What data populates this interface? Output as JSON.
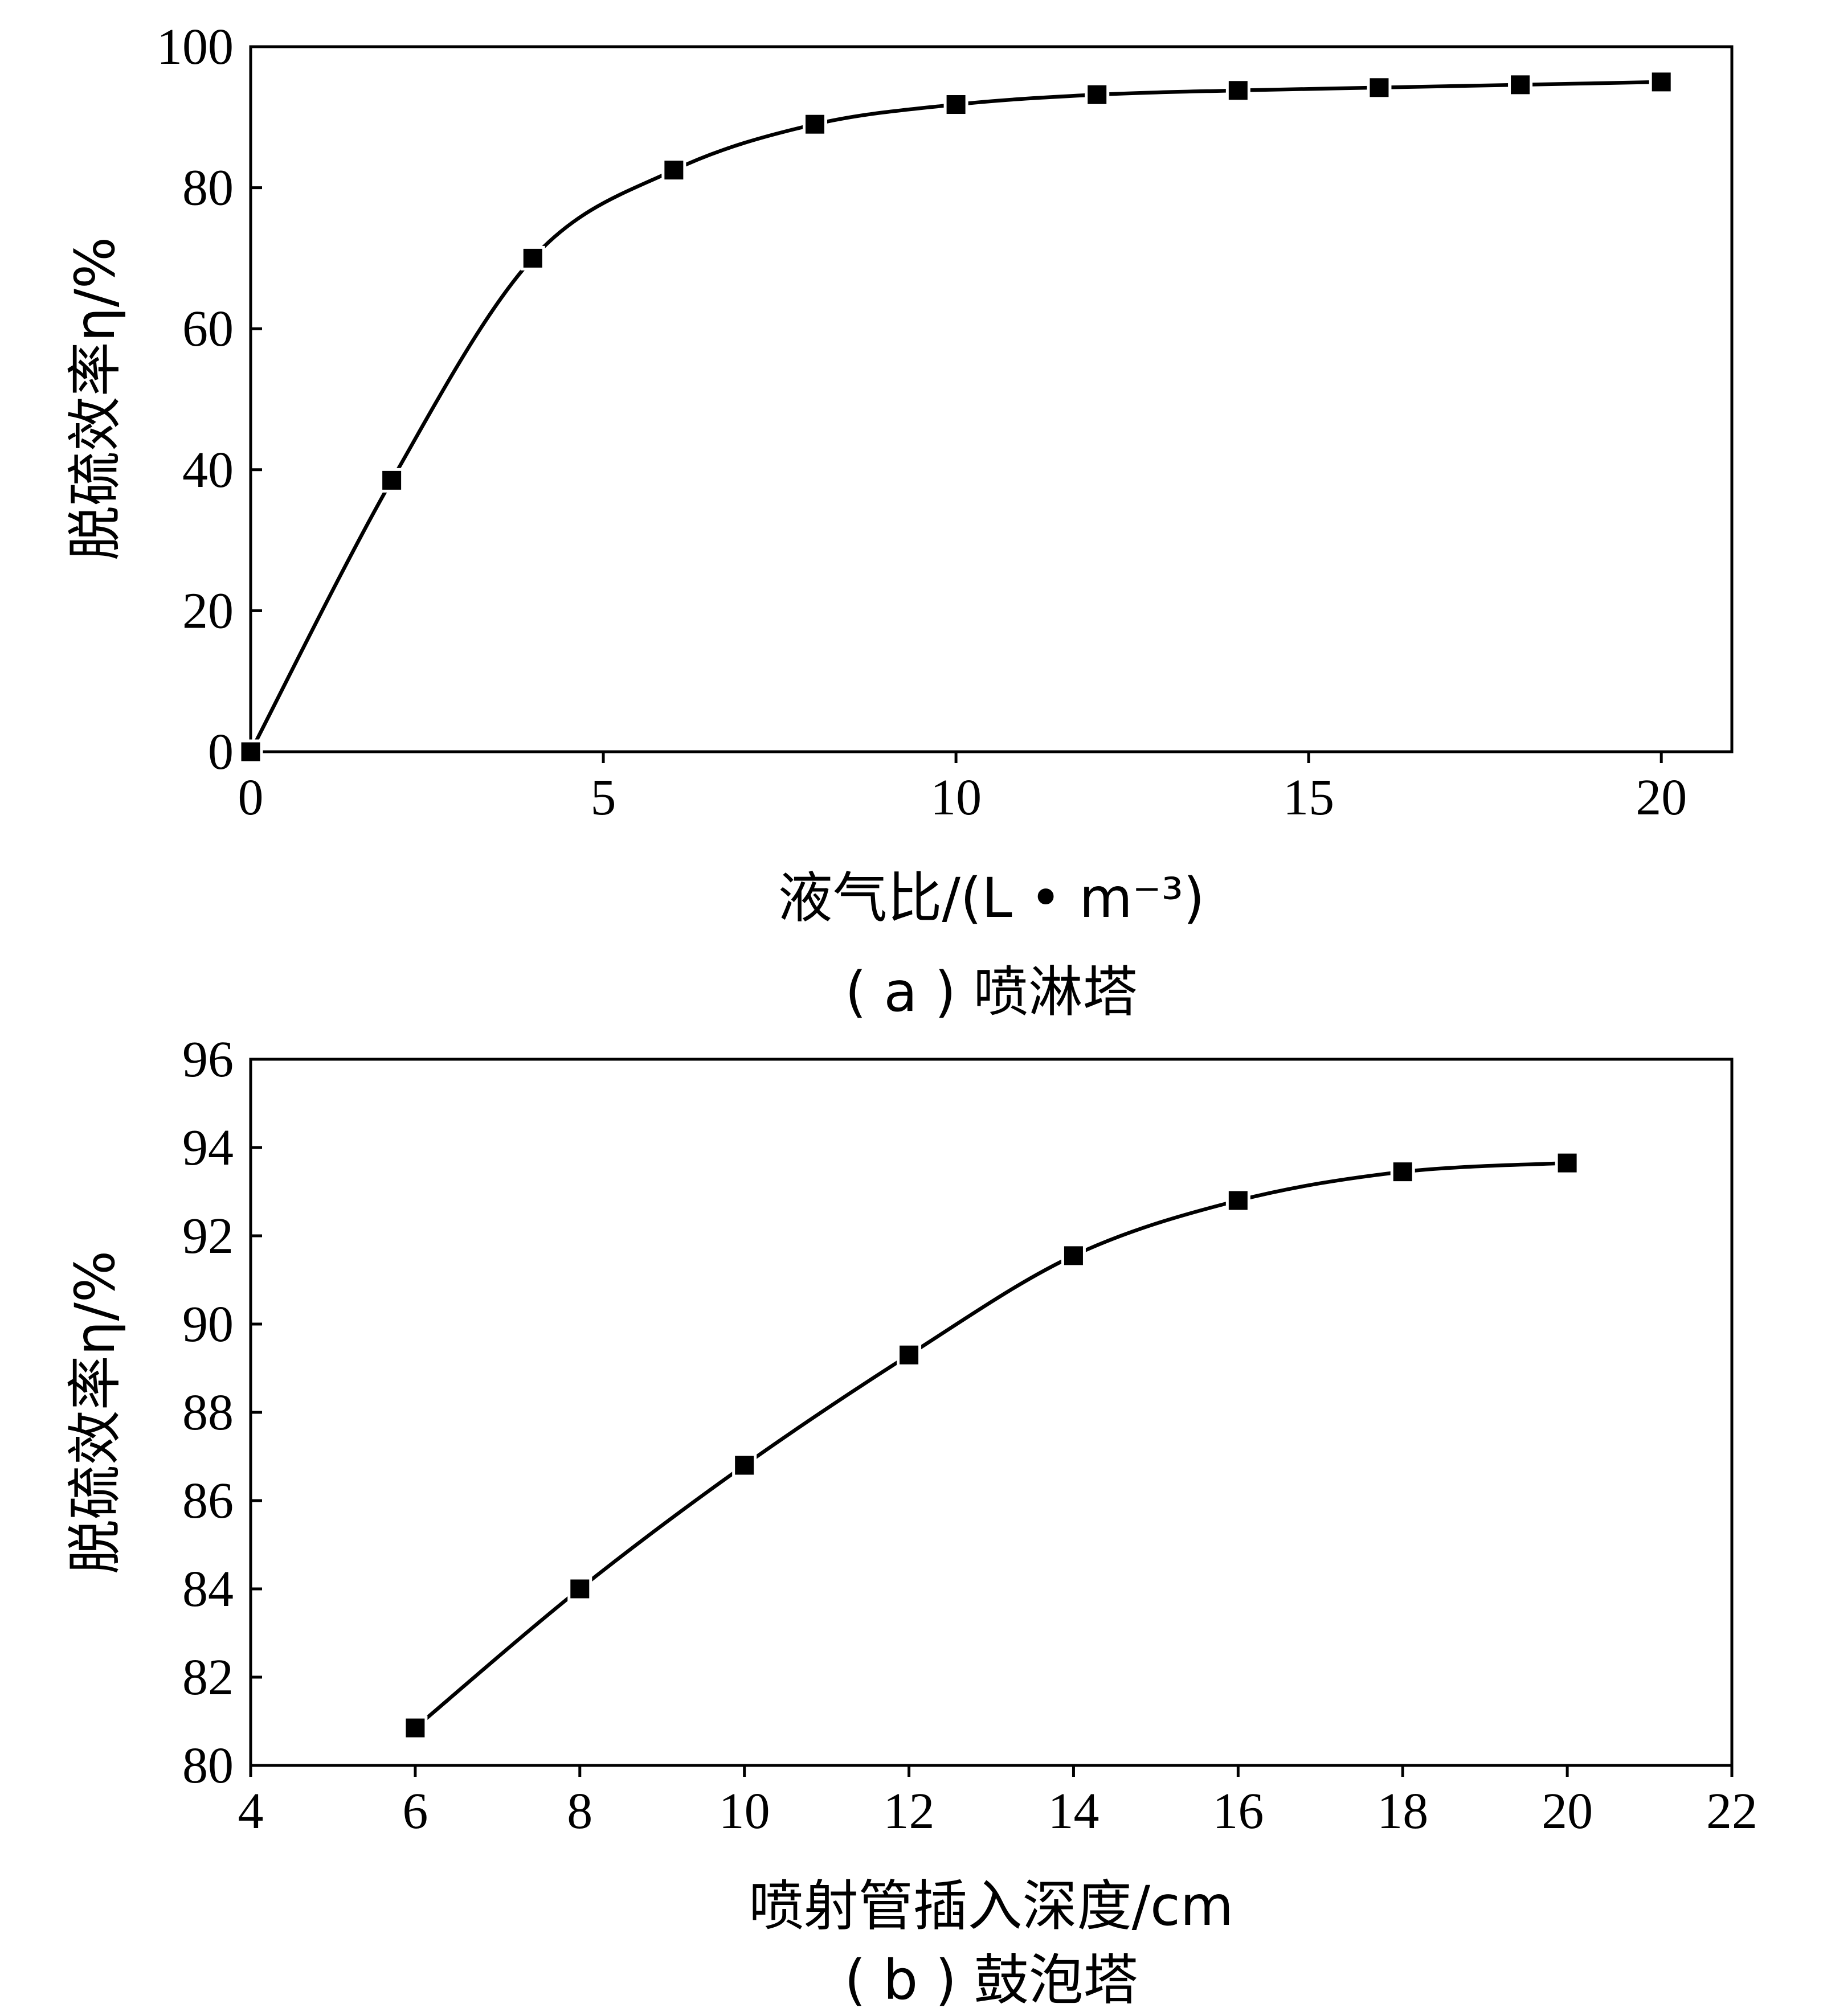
{
  "chart_data": [
    {
      "type": "line",
      "caption": "( a ) 喷淋塔",
      "xlabel": "液气比/(L • m⁻³)",
      "ylabel": "脱硫效率η/%",
      "xlim": [
        0,
        21
      ],
      "ylim": [
        0,
        100
      ],
      "xticks": [
        0,
        5,
        10,
        15,
        20
      ],
      "yticks": [
        0,
        20,
        40,
        60,
        80,
        100
      ],
      "markers": "square",
      "smooth": true,
      "grid": false,
      "series": [
        {
          "x": [
            0,
            2,
            4,
            6,
            8,
            10,
            12,
            14,
            16,
            18,
            20
          ],
          "y": [
            0,
            38.5,
            70,
            82.5,
            89,
            91.8,
            93.2,
            93.8,
            94.2,
            94.6,
            95
          ]
        }
      ]
    },
    {
      "type": "line",
      "caption": "( b ) 鼓泡塔",
      "xlabel": "喷射管插入深度/cm",
      "ylabel": "脱硫效率η/%",
      "xlim": [
        4,
        22
      ],
      "ylim": [
        80,
        96
      ],
      "xticks": [
        4,
        6,
        8,
        10,
        12,
        14,
        16,
        18,
        20,
        22
      ],
      "yticks": [
        80,
        82,
        84,
        86,
        88,
        90,
        92,
        94,
        96
      ],
      "markers": "square",
      "smooth": true,
      "grid": false,
      "series": [
        {
          "x": [
            6,
            8,
            10,
            12,
            14,
            16,
            18,
            20
          ],
          "y": [
            80.85,
            84,
            86.8,
            89.3,
            91.55,
            92.8,
            93.45,
            93.65
          ]
        }
      ]
    }
  ]
}
